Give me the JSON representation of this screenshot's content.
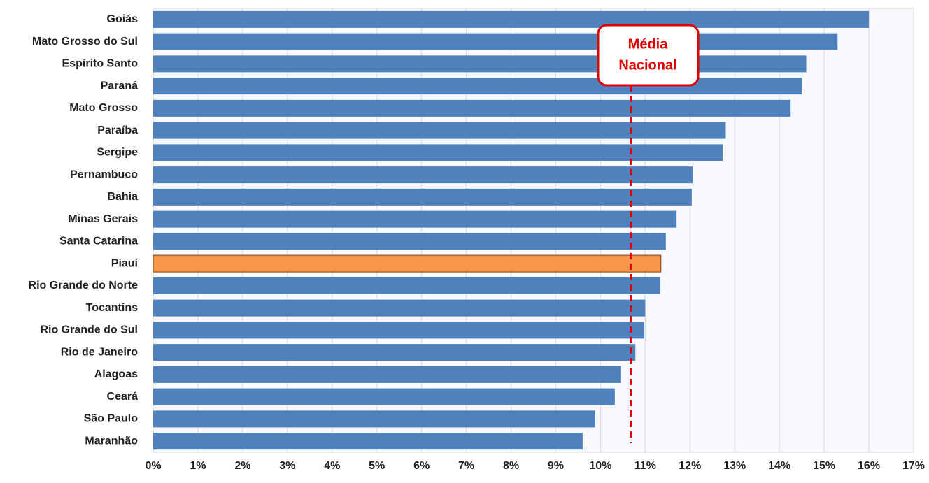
{
  "chart_data": {
    "type": "bar",
    "orientation": "horizontal",
    "categories": [
      "Goiás",
      "Mato Grosso do Sul",
      "Espírito Santo",
      "Paraná",
      "Mato Grosso",
      "Paraíba",
      "Sergipe",
      "Pernambuco",
      "Bahia",
      "Minas Gerais",
      "Santa Catarina",
      "Piauí",
      "Rio Grande do Norte",
      "Tocantins",
      "Rio Grande do Sul",
      "Rio de Janeiro",
      "Alagoas",
      "Ceará",
      "São Paulo",
      "Maranhão"
    ],
    "values": [
      16.0,
      15.3,
      14.6,
      14.5,
      14.25,
      12.8,
      12.73,
      12.06,
      12.04,
      11.7,
      11.46,
      11.35,
      11.34,
      11.0,
      10.98,
      10.78,
      10.46,
      10.32,
      9.88,
      9.6
    ],
    "colors": [
      "#4f81bd",
      "#4f81bd",
      "#4f81bd",
      "#4f81bd",
      "#4f81bd",
      "#4f81bd",
      "#4f81bd",
      "#4f81bd",
      "#4f81bd",
      "#4f81bd",
      "#4f81bd",
      "#f79646",
      "#4f81bd",
      "#4f81bd",
      "#4f81bd",
      "#4f81bd",
      "#4f81bd",
      "#4f81bd",
      "#4f81bd",
      "#4f81bd"
    ],
    "xlim": [
      0,
      17
    ],
    "xticks": [
      {
        "value": 0,
        "label": "0%"
      },
      {
        "value": 1,
        "label": "1%"
      },
      {
        "value": 2,
        "label": "2%"
      },
      {
        "value": 3,
        "label": "3%"
      },
      {
        "value": 4,
        "label": "4%"
      },
      {
        "value": 5,
        "label": "5%"
      },
      {
        "value": 6,
        "label": "6%"
      },
      {
        "value": 7,
        "label": "7%"
      },
      {
        "value": 8,
        "label": "8%"
      },
      {
        "value": 9,
        "label": "9%"
      },
      {
        "value": 10,
        "label": "10%"
      },
      {
        "value": 11,
        "label": "11%"
      },
      {
        "value": 12,
        "label": "12%"
      },
      {
        "value": 13,
        "label": "13%"
      },
      {
        "value": 14,
        "label": "14%"
      },
      {
        "value": 15,
        "label": "15%"
      },
      {
        "value": 16,
        "label": "16%"
      },
      {
        "value": 17,
        "label": "17%"
      }
    ],
    "grid": true,
    "reference_line": {
      "value": 10.68,
      "label_lines": [
        "Média",
        "Nacional"
      ],
      "color": "#e00000"
    }
  }
}
